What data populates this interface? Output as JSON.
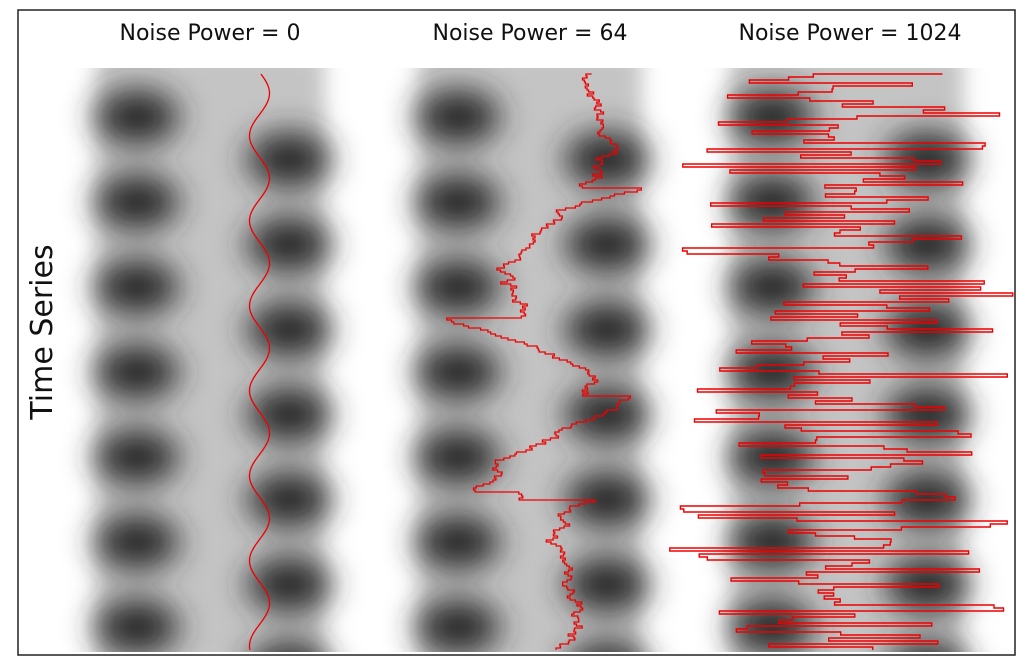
{
  "panels": [
    {
      "title": "Noise Power = 0"
    },
    {
      "title": "Noise Power = 64"
    },
    {
      "title": "Noise Power = 1024"
    }
  ],
  "y_label": "Time Series"
}
